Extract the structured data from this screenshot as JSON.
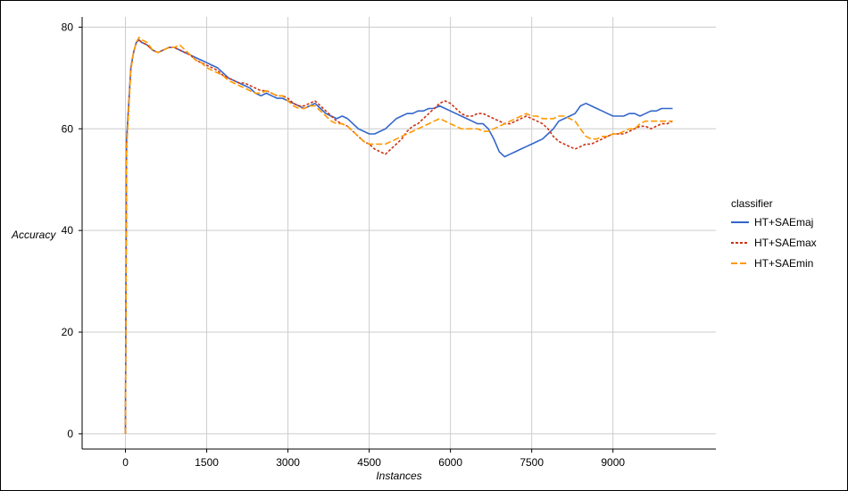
{
  "chart_data": {
    "type": "line",
    "title": "",
    "xlabel": "Instances",
    "ylabel": "Accuracy",
    "xlim": [
      -800,
      10900
    ],
    "ylim": [
      -3,
      82
    ],
    "xticks": [
      0,
      1500,
      3000,
      4500,
      6000,
      7500,
      9000
    ],
    "yticks": [
      0,
      20,
      40,
      60,
      80
    ],
    "grid": true,
    "legend": {
      "title": "classifier",
      "placement": "right"
    },
    "series": [
      {
        "name": "HT+SAEmaj",
        "color": "#3366cc",
        "dash": "solid",
        "x": [
          0,
          20,
          60,
          100,
          150,
          200,
          250,
          300,
          400,
          500,
          600,
          700,
          800,
          900,
          1000,
          1100,
          1200,
          1300,
          1400,
          1500,
          1600,
          1700,
          1800,
          1900,
          2000,
          2100,
          2200,
          2300,
          2400,
          2500,
          2600,
          2700,
          2800,
          2900,
          3000,
          3100,
          3200,
          3300,
          3400,
          3500,
          3600,
          3700,
          3800,
          3900,
          4000,
          4100,
          4200,
          4300,
          4400,
          4500,
          4600,
          4700,
          4800,
          4900,
          5000,
          5100,
          5200,
          5300,
          5400,
          5500,
          5600,
          5700,
          5800,
          5900,
          6000,
          6100,
          6200,
          6300,
          6400,
          6500,
          6600,
          6700,
          6800,
          6900,
          7000,
          7100,
          7200,
          7300,
          7400,
          7500,
          7600,
          7700,
          7800,
          7900,
          8000,
          8100,
          8200,
          8300,
          8400,
          8500,
          8600,
          8700,
          8800,
          8900,
          9000,
          9100,
          9200,
          9300,
          9400,
          9500,
          9600,
          9700,
          9800,
          9900,
          10000,
          10100
        ],
        "y": [
          0,
          58,
          65,
          72,
          75,
          77,
          77.5,
          77,
          76.5,
          75.5,
          75,
          75.5,
          76,
          76,
          75.5,
          75,
          74.5,
          74,
          73.5,
          73,
          72.5,
          72,
          71,
          70,
          69.5,
          69,
          68.5,
          68,
          67,
          66.5,
          67,
          66.5,
          66,
          66,
          65.5,
          65,
          64.5,
          64,
          64.5,
          65,
          64,
          63,
          62.5,
          62,
          62.5,
          62,
          61,
          60,
          59.5,
          59,
          59,
          59.5,
          60,
          61,
          62,
          62.5,
          63,
          63,
          63.5,
          63.5,
          64,
          64,
          64.5,
          64,
          63.5,
          63,
          62.5,
          62,
          61.5,
          61,
          61,
          60,
          58,
          55.5,
          54.5,
          55,
          55.5,
          56,
          56.5,
          57,
          57.5,
          58,
          59,
          60,
          61.5,
          62,
          62.5,
          63,
          64.5,
          65,
          64.5,
          64,
          63.5,
          63,
          62.5,
          62.5,
          62.5,
          63,
          63,
          62.5,
          63,
          63.5,
          63.5,
          64,
          64,
          64
        ]
      },
      {
        "name": "HT+SAEmax",
        "color": "#cc3311",
        "dash": "dotted",
        "x": [
          0,
          20,
          60,
          100,
          150,
          200,
          250,
          300,
          400,
          500,
          600,
          700,
          800,
          900,
          1000,
          1100,
          1200,
          1300,
          1400,
          1500,
          1600,
          1700,
          1800,
          1900,
          2000,
          2100,
          2200,
          2300,
          2400,
          2500,
          2600,
          2700,
          2800,
          2900,
          3000,
          3100,
          3200,
          3300,
          3400,
          3500,
          3600,
          3700,
          3800,
          3900,
          4000,
          4100,
          4200,
          4300,
          4400,
          4500,
          4600,
          4700,
          4800,
          4900,
          5000,
          5100,
          5200,
          5300,
          5400,
          5500,
          5600,
          5700,
          5800,
          5900,
          6000,
          6100,
          6200,
          6300,
          6400,
          6500,
          6600,
          6700,
          6800,
          6900,
          7000,
          7100,
          7200,
          7300,
          7400,
          7500,
          7600,
          7700,
          7800,
          7900,
          8000,
          8100,
          8200,
          8300,
          8400,
          8500,
          8600,
          8700,
          8800,
          8900,
          9000,
          9100,
          9200,
          9300,
          9400,
          9500,
          9600,
          9700,
          9800,
          9900,
          10000,
          10100
        ],
        "y": [
          0,
          57,
          64,
          72,
          75,
          77,
          77.5,
          77,
          76.5,
          75.5,
          75,
          75.5,
          76,
          76,
          75.5,
          75,
          74.5,
          73.5,
          73,
          72.5,
          72,
          71.5,
          70.5,
          70,
          69.5,
          69,
          69,
          68.5,
          68,
          67.5,
          67.5,
          67,
          66.5,
          66.5,
          66,
          65,
          64.5,
          64.5,
          65,
          65.5,
          64.5,
          63.5,
          62.5,
          61.5,
          61,
          60.5,
          59.5,
          58.5,
          57.5,
          57,
          56,
          55.5,
          55,
          56,
          57,
          58,
          59.5,
          60.5,
          61,
          62,
          63,
          64,
          65,
          65.5,
          65,
          64,
          63,
          62.5,
          62.5,
          63,
          63,
          62.5,
          62,
          61.5,
          61,
          61,
          61.5,
          62,
          62.5,
          62,
          61.5,
          61,
          60,
          58.5,
          57.5,
          57,
          56.5,
          56,
          56.5,
          57,
          57,
          57.5,
          58,
          58.5,
          59,
          59,
          59,
          59.5,
          60,
          60.5,
          60.5,
          60,
          60.5,
          61,
          61,
          61.5
        ]
      },
      {
        "name": "HT+SAEmin",
        "color": "#ff9900",
        "dash": "dashed",
        "x": [
          0,
          20,
          60,
          100,
          150,
          200,
          250,
          300,
          400,
          500,
          600,
          700,
          800,
          900,
          1000,
          1100,
          1200,
          1300,
          1400,
          1500,
          1600,
          1700,
          1800,
          1900,
          2000,
          2100,
          2200,
          2300,
          2400,
          2500,
          2600,
          2700,
          2800,
          2900,
          3000,
          3100,
          3200,
          3300,
          3400,
          3500,
          3600,
          3700,
          3800,
          3900,
          4000,
          4100,
          4200,
          4300,
          4400,
          4500,
          4600,
          4700,
          4800,
          4900,
          5000,
          5100,
          5200,
          5300,
          5400,
          5500,
          5600,
          5700,
          5800,
          5900,
          6000,
          6100,
          6200,
          6300,
          6400,
          6500,
          6600,
          6700,
          6800,
          6900,
          7000,
          7100,
          7200,
          7300,
          7400,
          7500,
          7600,
          7700,
          7800,
          7900,
          8000,
          8100,
          8200,
          8300,
          8400,
          8500,
          8600,
          8700,
          8800,
          8900,
          9000,
          9100,
          9200,
          9300,
          9400,
          9500,
          9600,
          9700,
          9800,
          9900,
          10000,
          10100
        ],
        "y": [
          0,
          56,
          64,
          71.5,
          75,
          77,
          78,
          77.5,
          77,
          75.5,
          75,
          75.5,
          76,
          76,
          76.5,
          75.5,
          74.5,
          73.5,
          73,
          72,
          71.5,
          71,
          70.5,
          69.5,
          69,
          68.5,
          68,
          67.5,
          67,
          67,
          67.5,
          67,
          66.5,
          66.5,
          65.5,
          64.5,
          64,
          64,
          64.5,
          64.5,
          63.5,
          62.5,
          61.5,
          61,
          61,
          60.5,
          59.5,
          58.5,
          57.5,
          57,
          57,
          57,
          57,
          57.5,
          58,
          58.5,
          59,
          59.5,
          60,
          60.5,
          61,
          61.5,
          62,
          61.5,
          61,
          60.5,
          60,
          60,
          60,
          60,
          59.5,
          59.5,
          60,
          60.5,
          61,
          61.5,
          62,
          62.5,
          63,
          62.5,
          62.5,
          62,
          62,
          62,
          62.5,
          62.5,
          62,
          61.5,
          60,
          58.5,
          58,
          58,
          58.5,
          58.5,
          59,
          59,
          59.5,
          60,
          60,
          61,
          61.5,
          61.5,
          61.5,
          61.5,
          61.5,
          61.5
        ]
      }
    ]
  }
}
